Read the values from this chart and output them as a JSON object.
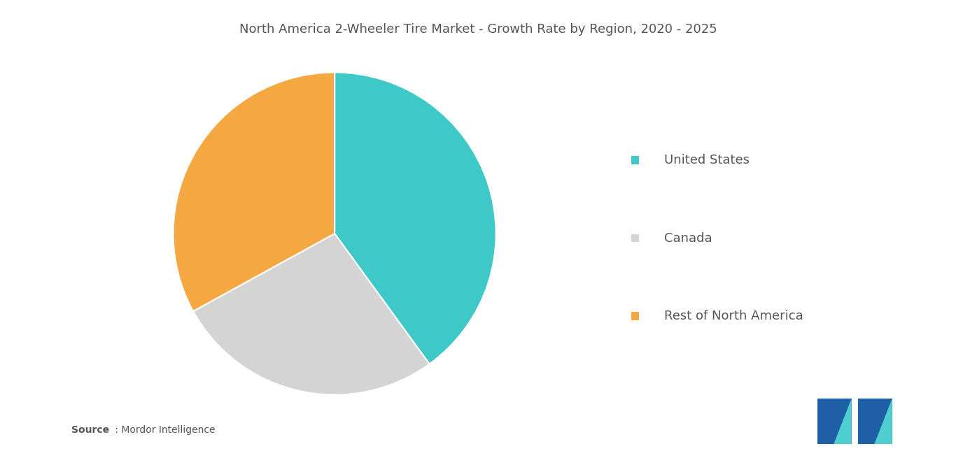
{
  "title": "North America 2-Wheeler Tire Market - Growth Rate by Region, 2020 - 2025",
  "title_fontsize": 13,
  "title_color": "#555555",
  "labels": [
    "United States",
    "Canada",
    "Rest of North America"
  ],
  "values": [
    40,
    27,
    33
  ],
  "colors": [
    "#3ec8c8",
    "#d4d4d4",
    "#f5a742"
  ],
  "startangle": 90,
  "legend_fontsize": 13,
  "legend_color": "#555555",
  "source_text": " : Mordor Intelligence",
  "source_bold": "Source",
  "background_color": "#ffffff"
}
